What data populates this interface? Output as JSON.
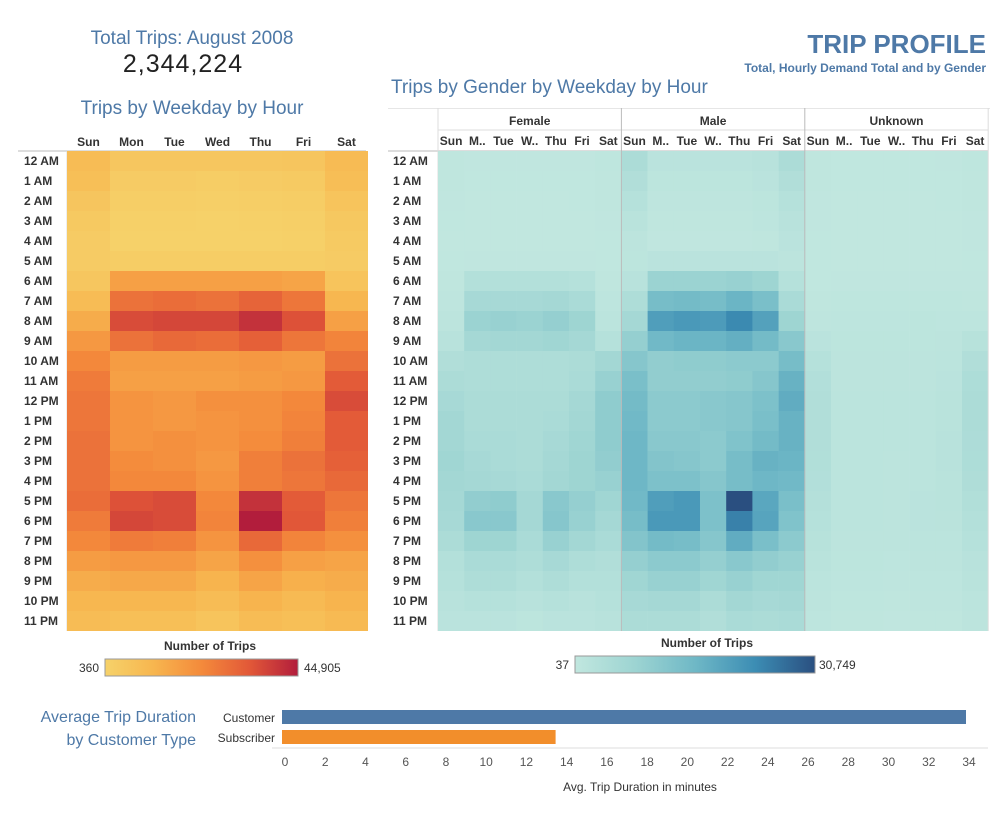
{
  "header": {
    "total_title": "Total Trips: August 2008",
    "total_value": "2,344,224",
    "profile_title": "TRIP PROFILE",
    "profile_subtitle": "Total, Hourly Demand Total and by Gender"
  },
  "colors": {
    "heat1": [
      "#f6d26a",
      "#f7b64f",
      "#f48a3b",
      "#e25838",
      "#b21d3c"
    ],
    "heat2": [
      "#c1e7df",
      "#9dd4d2",
      "#6fb8c6",
      "#3c8db4",
      "#2a4f80"
    ],
    "bar_customer": "#4e79a7",
    "bar_subscriber": "#f28e2b"
  },
  "chart_data": [
    {
      "type": "heatmap",
      "title": "Trips by Weekday by Hour",
      "x": [
        "Sun",
        "Mon",
        "Tue",
        "Wed",
        "Thu",
        "Fri",
        "Sat"
      ],
      "y": [
        "12 AM",
        "1 AM",
        "2 AM",
        "3 AM",
        "4 AM",
        "5 AM",
        "6 AM",
        "7 AM",
        "8 AM",
        "9 AM",
        "10 AM",
        "11 AM",
        "12 PM",
        "1 PM",
        "2 PM",
        "3 PM",
        "4 PM",
        "5 PM",
        "6 PM",
        "7 PM",
        "8 PM",
        "9 PM",
        "10 PM",
        "11 PM"
      ],
      "values": [
        [
          9000,
          5000,
          5000,
          5000,
          5000,
          5500,
          9500
        ],
        [
          8000,
          3000,
          3000,
          2500,
          3000,
          3500,
          8500
        ],
        [
          5500,
          2000,
          2000,
          1500,
          2000,
          2500,
          6000
        ],
        [
          4000,
          1000,
          1000,
          800,
          1000,
          1500,
          4500
        ],
        [
          3000,
          700,
          700,
          600,
          700,
          1000,
          3500
        ],
        [
          3000,
          2500,
          2500,
          2500,
          2500,
          2500,
          3000
        ],
        [
          5000,
          17000,
          17000,
          17000,
          17000,
          16000,
          6000
        ],
        [
          9000,
          28000,
          29000,
          28000,
          31000,
          27000,
          11000
        ],
        [
          14000,
          36000,
          37000,
          37000,
          41000,
          35000,
          17000
        ],
        [
          19000,
          28000,
          30000,
          29000,
          32000,
          27000,
          24000
        ],
        [
          23000,
          18000,
          18000,
          18000,
          19000,
          18000,
          28000
        ],
        [
          26000,
          17000,
          17000,
          17000,
          18000,
          19000,
          33000
        ],
        [
          27000,
          20000,
          19000,
          21000,
          21000,
          23000,
          36000
        ],
        [
          27000,
          20000,
          19000,
          20000,
          21000,
          24000,
          33000
        ],
        [
          28000,
          20000,
          21000,
          20000,
          22000,
          25000,
          33000
        ],
        [
          28000,
          22000,
          21000,
          19000,
          25000,
          28000,
          32000
        ],
        [
          28000,
          23000,
          23000,
          20000,
          25000,
          27000,
          30000
        ],
        [
          29000,
          35000,
          36000,
          23000,
          41000,
          33000,
          27000
        ],
        [
          26000,
          37000,
          36000,
          24000,
          44905,
          34000,
          25000
        ],
        [
          23000,
          26000,
          25000,
          20000,
          30000,
          24000,
          21000
        ],
        [
          18000,
          19000,
          19000,
          16000,
          21000,
          17000,
          16000
        ],
        [
          14000,
          15000,
          15000,
          12000,
          16000,
          13000,
          14000
        ],
        [
          11000,
          11000,
          11000,
          9000,
          12000,
          10000,
          12000
        ],
        [
          9000,
          8000,
          8000,
          6000,
          9000,
          8000,
          10000
        ]
      ],
      "legend_title": "Number of Trips",
      "legend_min": "360",
      "legend_max": "44,905",
      "range": [
        360,
        44905
      ]
    },
    {
      "type": "heatmap",
      "title": "Trips by Gender by Weekday by Hour",
      "panels": [
        "Female",
        "Male",
        "Unknown"
      ],
      "x": [
        "Sun",
        "M..",
        "Tue",
        "W..",
        "Thu",
        "Fri",
        "Sat"
      ],
      "y": [
        "12 AM",
        "1 AM",
        "2 AM",
        "3 AM",
        "4 AM",
        "5 AM",
        "6 AM",
        "7 AM",
        "8 AM",
        "9 AM",
        "10 AM",
        "11 AM",
        "12 PM",
        "1 PM",
        "2 PM",
        "3 PM",
        "4 PM",
        "5 PM",
        "6 PM",
        "7 PM",
        "8 PM",
        "9 PM",
        "10 PM",
        "11 PM"
      ],
      "values": {
        "Female": [
          [
            500,
            300,
            300,
            300,
            300,
            300,
            600
          ],
          [
            400,
            200,
            200,
            200,
            200,
            200,
            500
          ],
          [
            300,
            100,
            100,
            100,
            100,
            200,
            400
          ],
          [
            200,
            100,
            100,
            100,
            100,
            100,
            300
          ],
          [
            100,
            100,
            100,
            100,
            100,
            100,
            200
          ],
          [
            200,
            300,
            300,
            300,
            300,
            300,
            200
          ],
          [
            400,
            3000,
            3000,
            3000,
            3000,
            2500,
            500
          ],
          [
            700,
            5500,
            5500,
            5500,
            6000,
            5000,
            900
          ],
          [
            1200,
            8000,
            8500,
            8000,
            9000,
            7500,
            1400
          ],
          [
            2000,
            6000,
            6500,
            6500,
            7000,
            6000,
            2600
          ],
          [
            3500,
            4000,
            4000,
            4000,
            4000,
            4500,
            6500
          ],
          [
            4500,
            4000,
            4000,
            4000,
            4000,
            5000,
            8500
          ],
          [
            5500,
            4500,
            4500,
            4500,
            4500,
            6000,
            10000
          ],
          [
            6500,
            4500,
            4500,
            4500,
            5000,
            6500,
            10000
          ],
          [
            6500,
            5000,
            5000,
            4500,
            5500,
            7000,
            10000
          ],
          [
            7000,
            5500,
            5000,
            4500,
            6000,
            7500,
            9500
          ],
          [
            6500,
            6000,
            5500,
            5000,
            6500,
            7500,
            8500
          ],
          [
            6000,
            9500,
            10000,
            6000,
            11000,
            9000,
            7000
          ],
          [
            5500,
            11000,
            11000,
            6000,
            11500,
            8500,
            6000
          ],
          [
            4500,
            7500,
            7500,
            5000,
            8500,
            6500,
            5000
          ],
          [
            3000,
            5000,
            5000,
            4000,
            5500,
            4000,
            3500
          ],
          [
            2500,
            4000,
            4000,
            3000,
            4000,
            3000,
            3000
          ],
          [
            2000,
            2500,
            2500,
            2000,
            2500,
            2000,
            2500
          ],
          [
            1500,
            1500,
            1500,
            1000,
            1500,
            1500,
            2000
          ]
        ],
        "Male": [
          [
            4500,
            1500,
            1500,
            1500,
            1500,
            2000,
            4500
          ],
          [
            3500,
            1000,
            1000,
            1000,
            1000,
            1500,
            3500
          ],
          [
            2500,
            700,
            700,
            700,
            700,
            1000,
            2500
          ],
          [
            1800,
            500,
            500,
            400,
            500,
            800,
            2000
          ],
          [
            1200,
            300,
            300,
            300,
            300,
            500,
            1500
          ],
          [
            1000,
            1500,
            1500,
            1500,
            1500,
            1500,
            1200
          ],
          [
            2000,
            8000,
            8000,
            8000,
            8500,
            7500,
            2500
          ],
          [
            4000,
            14000,
            14500,
            14000,
            16000,
            13500,
            5000
          ],
          [
            6000,
            20000,
            21000,
            20500,
            23500,
            19500,
            7500
          ],
          [
            9000,
            15000,
            16000,
            16000,
            17000,
            14500,
            11000
          ],
          [
            11500,
            9500,
            10000,
            10000,
            10500,
            10500,
            14000
          ],
          [
            13500,
            9500,
            9500,
            9500,
            10000,
            11500,
            16500
          ],
          [
            14500,
            10500,
            10500,
            11000,
            11500,
            13000,
            17500
          ],
          [
            15000,
            10500,
            10500,
            11000,
            11500,
            13500,
            16500
          ],
          [
            15500,
            11000,
            11000,
            10500,
            12500,
            14500,
            16500
          ],
          [
            15500,
            12000,
            11500,
            10500,
            14000,
            16500,
            16000
          ],
          [
            15500,
            13000,
            13000,
            11500,
            14000,
            15500,
            15000
          ],
          [
            15000,
            20000,
            21000,
            13000,
            30749,
            18500,
            13500
          ],
          [
            14000,
            21000,
            21000,
            13000,
            24500,
            19000,
            12500
          ],
          [
            12000,
            14500,
            14000,
            11500,
            17500,
            13500,
            10500
          ],
          [
            9000,
            10500,
            10500,
            9000,
            11000,
            9500,
            8500
          ],
          [
            7000,
            8500,
            8500,
            7000,
            8500,
            7000,
            7000
          ],
          [
            5500,
            6000,
            6000,
            4500,
            6500,
            5500,
            6000
          ],
          [
            4500,
            4500,
            4500,
            3500,
            5000,
            4500,
            5000
          ]
        ],
        "Unknown": [
          [
            500,
            200,
            200,
            200,
            200,
            300,
            600
          ],
          [
            400,
            150,
            150,
            150,
            150,
            200,
            500
          ],
          [
            300,
            100,
            100,
            100,
            100,
            150,
            400
          ],
          [
            250,
            80,
            80,
            60,
            80,
            100,
            300
          ],
          [
            200,
            50,
            50,
            50,
            50,
            80,
            250
          ],
          [
            150,
            100,
            100,
            100,
            100,
            100,
            150
          ],
          [
            200,
            300,
            300,
            300,
            300,
            300,
            250
          ],
          [
            400,
            600,
            600,
            600,
            600,
            600,
            500
          ],
          [
            700,
            900,
            900,
            900,
            1000,
            900,
            900
          ],
          [
            1500,
            1000,
            1000,
            1000,
            1000,
            1100,
            2200
          ],
          [
            2500,
            1100,
            1100,
            1100,
            1100,
            1300,
            3500
          ],
          [
            3200,
            1200,
            1200,
            1200,
            1200,
            1500,
            4200
          ],
          [
            3500,
            1300,
            1300,
            1300,
            1300,
            1700,
            4600
          ],
          [
            3500,
            1300,
            1300,
            1300,
            1300,
            1800,
            4500
          ],
          [
            3500,
            1300,
            1300,
            1300,
            1400,
            1900,
            4400
          ],
          [
            3400,
            1300,
            1300,
            1200,
            1400,
            1900,
            4200
          ],
          [
            3200,
            1300,
            1300,
            1200,
            1400,
            1800,
            3900
          ],
          [
            2900,
            1400,
            1400,
            1200,
            1500,
            1700,
            3400
          ],
          [
            2600,
            1400,
            1400,
            1200,
            1500,
            1600,
            3000
          ],
          [
            2200,
            1200,
            1200,
            1100,
            1300,
            1400,
            2500
          ],
          [
            1800,
            1000,
            1000,
            900,
            1100,
            1100,
            2000
          ],
          [
            1400,
            800,
            800,
            700,
            800,
            900,
            1700
          ],
          [
            1100,
            600,
            600,
            500,
            700,
            700,
            1400
          ],
          [
            800,
            400,
            400,
            300,
            500,
            500,
            1100
          ]
        ]
      },
      "legend_title": "Number of Trips",
      "legend_min": "37",
      "legend_max": "30,749",
      "range": [
        37,
        30749
      ]
    },
    {
      "type": "bar",
      "title": "Average Trip Duration by Customer Type",
      "title_lines": [
        "Average Trip Duration",
        "by Customer Type"
      ],
      "categories": [
        "Customer",
        "Subscriber"
      ],
      "values": [
        34.0,
        13.6
      ],
      "xlabel": "Avg. Trip Duration in minutes",
      "xlim": [
        0,
        34
      ],
      "ticks": [
        0,
        2,
        4,
        6,
        8,
        10,
        12,
        14,
        16,
        18,
        20,
        22,
        24,
        26,
        28,
        30,
        32,
        34
      ]
    }
  ]
}
